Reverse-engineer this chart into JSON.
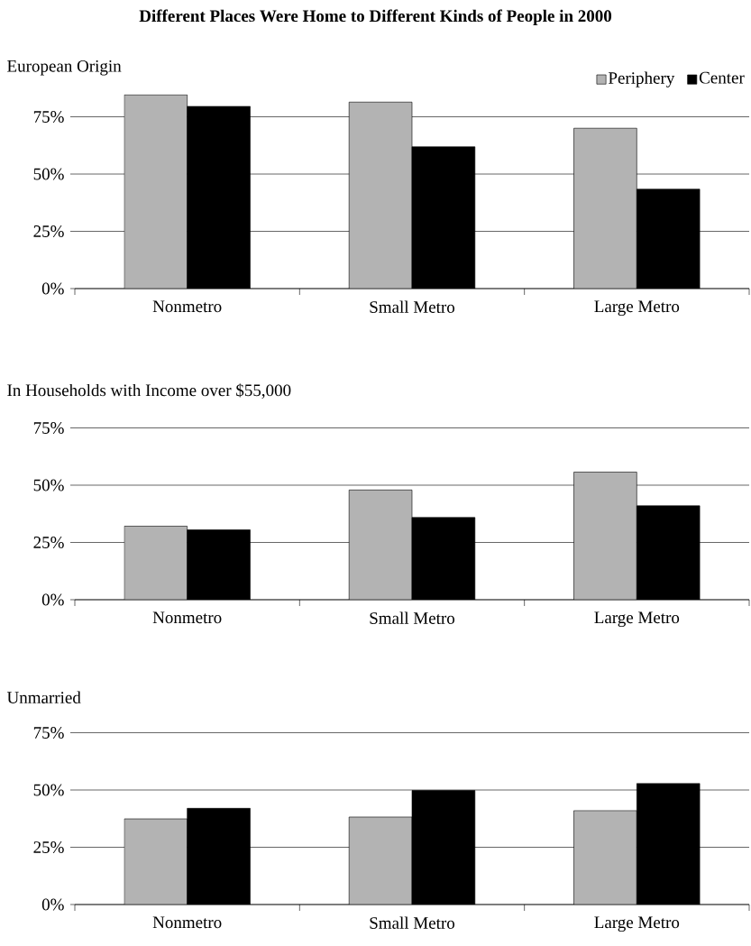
{
  "chart_data": [
    {
      "type": "bar",
      "title": "Different Places Were Home to Different Kinds of People in 2000",
      "subtitle": "European Origin",
      "categories": [
        "Nonmetro",
        "Small Metro",
        "Large Metro"
      ],
      "series": [
        {
          "name": "Periphery",
          "color": "#b3b3b3",
          "values": [
            84.6,
            81.4,
            70.0
          ]
        },
        {
          "name": "Center",
          "color": "#000000",
          "values": [
            79.6,
            61.9,
            43.4
          ]
        }
      ],
      "ylim": [
        0,
        85
      ],
      "yticks": [
        {
          "value": 0,
          "label": "0%"
        },
        {
          "value": 25,
          "label": "25%"
        },
        {
          "value": 50,
          "label": "50%"
        },
        {
          "value": 75,
          "label": "75%"
        }
      ],
      "grid": "y",
      "legend": "top right"
    },
    {
      "type": "bar",
      "subtitle": "In Households with Income over $55,000",
      "categories": [
        "Nonmetro",
        "Small Metro",
        "Large Metro"
      ],
      "series": [
        {
          "color": "#b3b3b3",
          "values": [
            32.1,
            47.9,
            55.7
          ]
        },
        {
          "color": "#000000",
          "values": [
            30.5,
            35.9,
            41.0
          ]
        }
      ],
      "ylim": [
        0,
        75
      ],
      "yticks": [
        {
          "value": 0,
          "label": "0%"
        },
        {
          "value": 25,
          "label": "25%"
        },
        {
          "value": 50,
          "label": "50%"
        },
        {
          "value": 75,
          "label": "75%"
        }
      ],
      "grid": "y"
    },
    {
      "type": "bar",
      "subtitle": "Unmarried",
      "categories": [
        "Nonmetro",
        "Small Metro",
        "Large Metro"
      ],
      "series": [
        {
          "color": "#b3b3b3",
          "values": [
            37.4,
            38.2,
            41.0
          ]
        },
        {
          "color": "#000000",
          "values": [
            42.0,
            49.8,
            52.9
          ]
        }
      ],
      "ylim": [
        0,
        75
      ],
      "yticks": [
        {
          "value": 0,
          "label": "0%"
        },
        {
          "value": 25,
          "label": "25%"
        },
        {
          "value": 50,
          "label": "50%"
        },
        {
          "value": 75,
          "label": "75%"
        }
      ],
      "grid": "y"
    }
  ]
}
